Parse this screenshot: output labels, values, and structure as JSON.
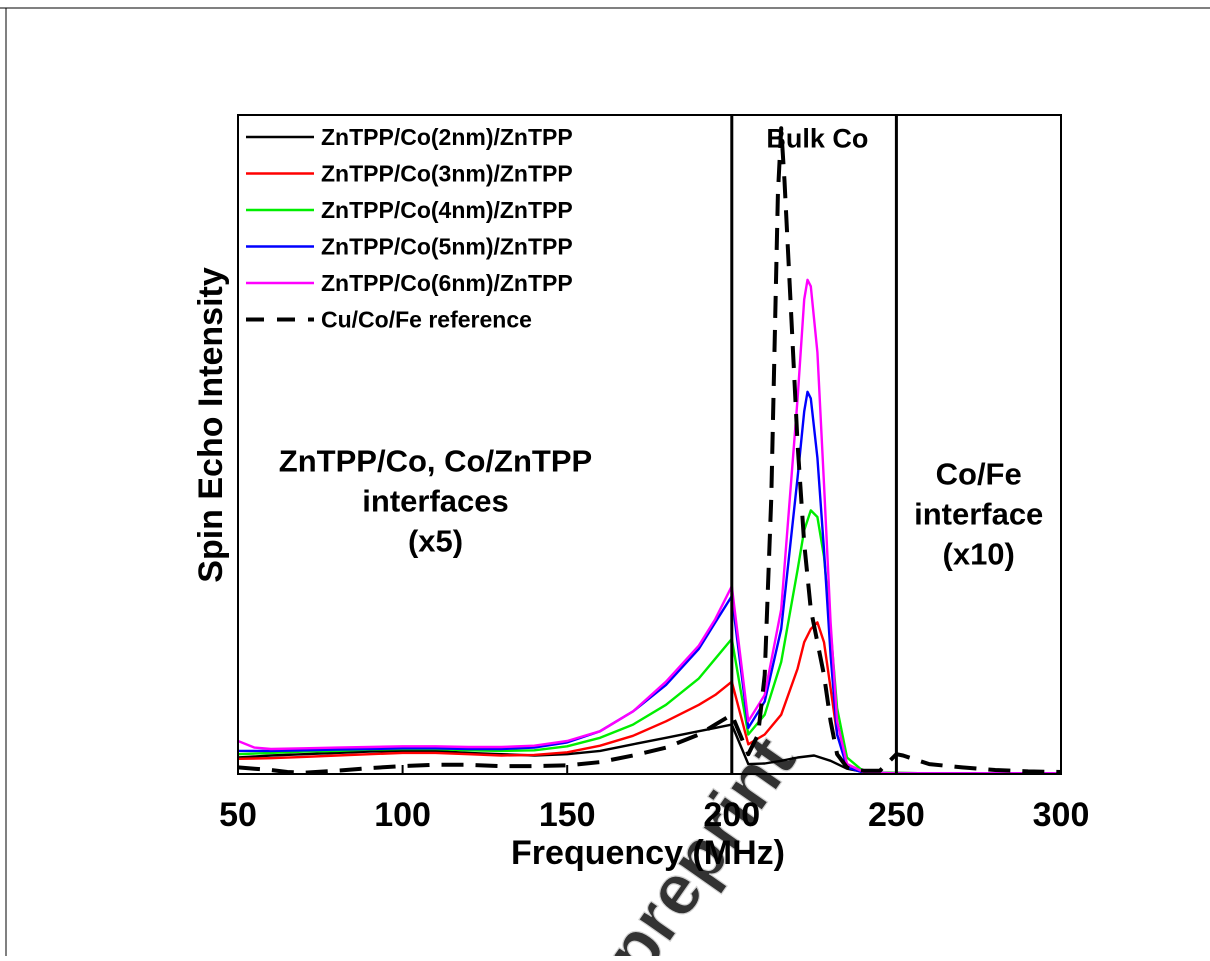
{
  "watermark": "preprint",
  "chart_data": {
    "type": "line",
    "xlabel": "Frequency (MHz)",
    "ylabel": "Spin Echo Intensity",
    "xlim": [
      50,
      300
    ],
    "ylim": [
      0,
      100
    ],
    "xticks": [
      50,
      100,
      150,
      200,
      250,
      300
    ],
    "grid": false,
    "legend_position": "top-left",
    "region_boundaries": [
      200,
      250
    ],
    "annotations": [
      {
        "x": 110,
        "y": 41.5,
        "lines": [
          "ZnTPP/Co, Co/ZnTPP",
          "interfaces",
          "(x5)"
        ]
      },
      {
        "x": 226,
        "y": 96.5,
        "lines": [
          "Bulk Co"
        ]
      },
      {
        "x": 275,
        "y": 39.5,
        "lines": [
          "Co/Fe",
          "interface",
          "(x10)"
        ]
      }
    ],
    "series": [
      {
        "name": "ZnTPP/Co(2nm)/ZnTPP",
        "color": "#000000",
        "dash": "solid",
        "x": [
          50,
          60,
          70,
          80,
          90,
          100,
          110,
          120,
          130,
          140,
          150,
          160,
          170,
          180,
          190,
          195,
          200,
          205,
          210,
          215,
          220,
          225,
          230,
          235,
          240,
          245,
          250,
          260,
          270,
          280,
          290,
          300
        ],
        "y": [
          2.5,
          2.8,
          3.0,
          3.2,
          3.4,
          3.5,
          3.5,
          3.2,
          3.0,
          2.8,
          3.0,
          3.5,
          4.5,
          5.5,
          6.5,
          7.0,
          7.5,
          1.5,
          1.6,
          2.0,
          2.5,
          2.8,
          2.0,
          0.8,
          0.3,
          0.2,
          0.15,
          0.1,
          0.1,
          0.1,
          0.1,
          0.1
        ]
      },
      {
        "name": "ZnTPP/Co(3nm)/ZnTPP",
        "color": "#ff0000",
        "dash": "solid",
        "x": [
          50,
          60,
          70,
          80,
          90,
          100,
          110,
          120,
          130,
          140,
          150,
          160,
          170,
          180,
          190,
          195,
          200,
          205,
          210,
          215,
          220,
          222,
          224,
          226,
          228,
          230,
          232,
          235,
          240,
          245,
          250,
          260,
          270,
          280,
          290,
          300
        ],
        "y": [
          2.3,
          2.4,
          2.6,
          2.8,
          3.0,
          3.2,
          3.2,
          3.0,
          2.8,
          2.9,
          3.3,
          4.3,
          5.8,
          8.0,
          10.5,
          12.0,
          14.0,
          4.5,
          6.0,
          9.0,
          16.0,
          20.0,
          22.0,
          23.0,
          20.0,
          13.0,
          6.0,
          1.5,
          0.3,
          0.15,
          0.1,
          0.1,
          0.1,
          0.1,
          0.1,
          0.1
        ]
      },
      {
        "name": "ZnTPP/Co(4nm)/ZnTPP",
        "color": "#00ee00",
        "dash": "solid",
        "x": [
          50,
          60,
          70,
          80,
          90,
          100,
          110,
          120,
          130,
          140,
          150,
          160,
          170,
          180,
          190,
          195,
          200,
          205,
          210,
          215,
          220,
          222,
          224,
          226,
          228,
          230,
          232,
          235,
          240,
          245,
          250,
          260,
          270,
          280,
          290,
          300
        ],
        "y": [
          3.0,
          3.2,
          3.4,
          3.5,
          3.7,
          3.8,
          3.8,
          3.6,
          3.5,
          3.6,
          4.2,
          5.5,
          7.5,
          10.5,
          14.5,
          17.5,
          20.5,
          6.0,
          9.0,
          17.0,
          31.0,
          37.0,
          40.0,
          39.0,
          33.0,
          22.0,
          10.0,
          2.5,
          0.4,
          0.2,
          0.15,
          0.1,
          0.1,
          0.1,
          0.1,
          0.1
        ]
      },
      {
        "name": "ZnTPP/Co(5nm)/ZnTPP",
        "color": "#0000ff",
        "dash": "solid",
        "x": [
          50,
          60,
          70,
          80,
          90,
          100,
          110,
          120,
          130,
          140,
          150,
          160,
          170,
          180,
          190,
          195,
          200,
          205,
          210,
          215,
          220,
          222,
          223,
          224,
          226,
          228,
          230,
          232,
          235,
          240,
          245,
          250,
          260,
          270,
          280,
          290,
          300
        ],
        "y": [
          3.5,
          3.5,
          3.6,
          3.7,
          3.8,
          3.9,
          3.9,
          3.8,
          3.8,
          4.0,
          4.8,
          6.5,
          9.5,
          13.5,
          19.0,
          23.0,
          27.0,
          7.0,
          11.0,
          22.0,
          45.0,
          55.0,
          58.0,
          57.0,
          48.0,
          34.0,
          18.0,
          6.0,
          1.0,
          0.2,
          0.15,
          0.1,
          0.1,
          0.1,
          0.1,
          0.1,
          0.1
        ]
      },
      {
        "name": "ZnTPP/Co(6nm)/ZnTPP",
        "color": "#ff00ff",
        "dash": "solid",
        "x": [
          50,
          55,
          60,
          70,
          80,
          90,
          100,
          110,
          120,
          130,
          140,
          150,
          160,
          170,
          180,
          190,
          195,
          200,
          205,
          210,
          215,
          220,
          222,
          223,
          224,
          226,
          228,
          230,
          232,
          235,
          240,
          245,
          250,
          260,
          270,
          280,
          290,
          300
        ],
        "y": [
          5.0,
          4.0,
          3.8,
          3.9,
          4.0,
          4.1,
          4.2,
          4.2,
          4.1,
          4.1,
          4.3,
          5.0,
          6.5,
          9.5,
          14.0,
          19.5,
          23.5,
          28.5,
          8.0,
          12.0,
          25.0,
          57.0,
          72.0,
          75.0,
          74.0,
          64.0,
          44.0,
          23.0,
          8.0,
          1.5,
          0.3,
          0.15,
          0.1,
          0.1,
          0.1,
          0.1,
          0.1,
          0.1
        ]
      },
      {
        "name": "Cu/Co/Fe reference",
        "color": "#000000",
        "dash": "dashed",
        "x": [
          50,
          55,
          60,
          65,
          70,
          80,
          90,
          100,
          110,
          120,
          130,
          140,
          150,
          160,
          170,
          180,
          190,
          195,
          200,
          205,
          208,
          210,
          212,
          214,
          215,
          216,
          218,
          220,
          222,
          224,
          226,
          228,
          230,
          232,
          235,
          240,
          245,
          250,
          252,
          255,
          260,
          270,
          280,
          290,
          300
        ],
        "y": [
          1.0,
          0.8,
          0.6,
          0.3,
          0.2,
          0.5,
          0.9,
          1.2,
          1.4,
          1.4,
          1.2,
          1.2,
          1.3,
          1.8,
          2.8,
          4.0,
          6.0,
          7.5,
          9.0,
          3.0,
          6.0,
          15.0,
          42.0,
          88.0,
          98.0,
          90.0,
          70.0,
          50.0,
          35.0,
          25.0,
          20.0,
          15.0,
          8.0,
          3.0,
          1.0,
          0.5,
          0.5,
          3.0,
          2.8,
          2.3,
          1.5,
          1.0,
          0.6,
          0.4,
          0.3
        ]
      }
    ]
  }
}
